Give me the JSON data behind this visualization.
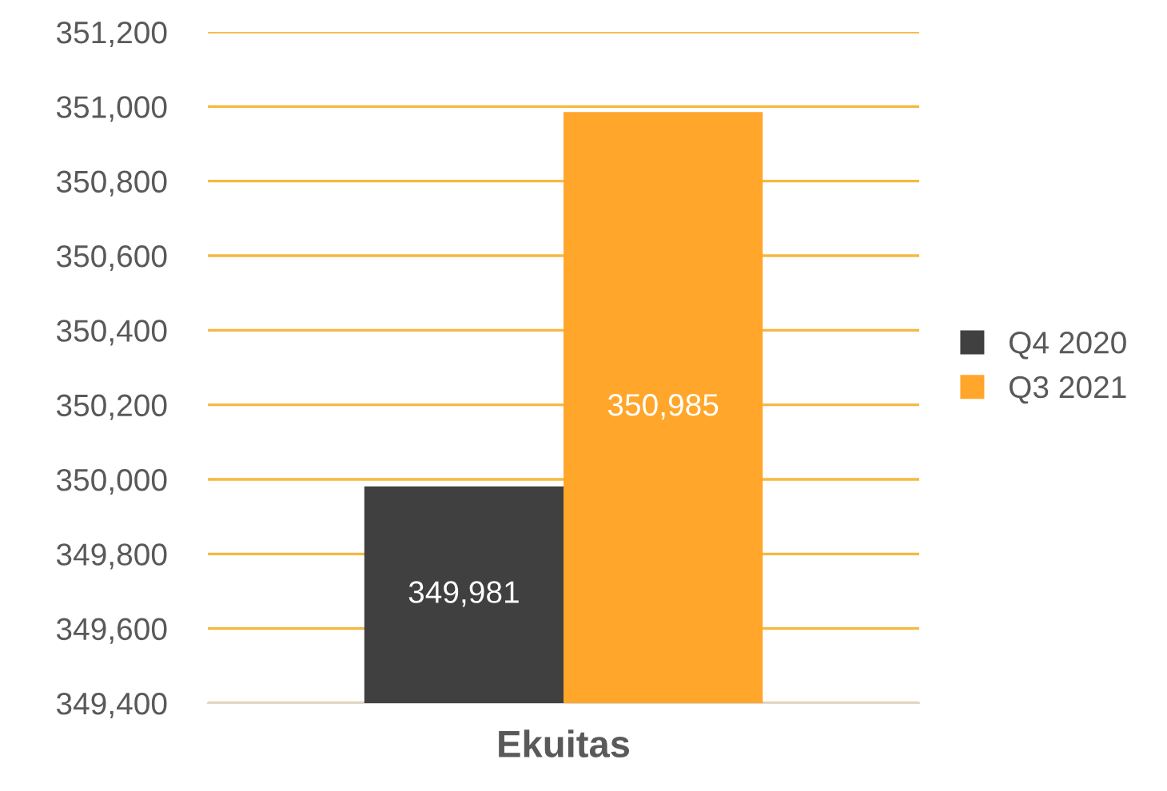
{
  "chart_data": {
    "type": "bar",
    "categories": [
      "Ekuitas"
    ],
    "series": [
      {
        "name": "Q4 2020",
        "color": "#404040",
        "values": [
          349981
        ],
        "value_labels": [
          "349,981"
        ]
      },
      {
        "name": "Q3 2021",
        "color": "#ffa62b",
        "values": [
          350985
        ],
        "value_labels": [
          "350,985"
        ]
      }
    ],
    "ylim": [
      349400,
      351200
    ],
    "yticks": [
      {
        "value": 349400,
        "label": "349,400"
      },
      {
        "value": 349600,
        "label": "349,600"
      },
      {
        "value": 349800,
        "label": "349,800"
      },
      {
        "value": 350000,
        "label": "350,000"
      },
      {
        "value": 350200,
        "label": "350,200"
      },
      {
        "value": 350400,
        "label": "350,400"
      },
      {
        "value": 350600,
        "label": "350,600"
      },
      {
        "value": 350800,
        "label": "350,800"
      },
      {
        "value": 351000,
        "label": "351,000"
      },
      {
        "value": 351200,
        "label": "351,200"
      }
    ],
    "grid": "y",
    "legend": "right"
  }
}
